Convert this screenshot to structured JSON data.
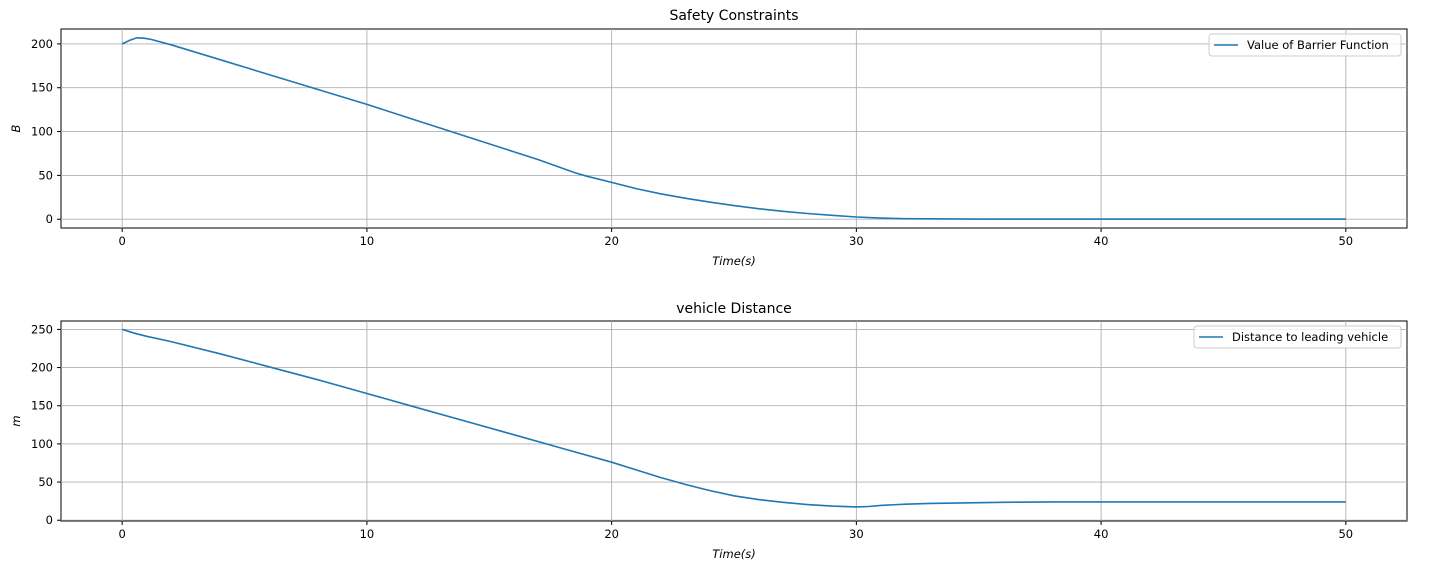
{
  "chart_data": [
    {
      "type": "line",
      "title": "Safety Constraints",
      "xlabel": "Time(s)",
      "ylabel": "B",
      "xlim": [
        -2.5,
        52.5
      ],
      "ylim": [
        -10,
        217
      ],
      "xticks": [
        0,
        10,
        20,
        30,
        40,
        50
      ],
      "yticks": [
        0,
        50,
        100,
        150,
        200
      ],
      "grid": true,
      "legend_position": "top-right",
      "series": [
        {
          "name": "Value of Barrier Function",
          "color": "#1f77b4",
          "x": [
            0,
            0.3,
            0.6,
            0.9,
            1.2,
            2,
            4,
            6,
            8,
            10,
            12,
            14,
            16,
            17,
            18,
            18.5,
            19,
            20,
            21,
            22,
            23,
            24,
            25,
            26,
            27,
            28,
            29,
            30,
            31,
            32,
            35,
            40,
            45,
            50
          ],
          "values": [
            200,
            204,
            207,
            206.5,
            205,
            199,
            182,
            165,
            148,
            131,
            113,
            95,
            77,
            68,
            58,
            53,
            49,
            42,
            35,
            29,
            24,
            19.5,
            15.5,
            12,
            9,
            6.5,
            4.5,
            2.5,
            1.3,
            0.6,
            0.2,
            0.1,
            0.1,
            0.1
          ]
        }
      ]
    },
    {
      "type": "line",
      "title": "vehicle Distance",
      "xlabel": "Time(s)",
      "ylabel": "m",
      "xlim": [
        -2.5,
        52.5
      ],
      "ylim": [
        -1,
        261
      ],
      "xticks": [
        0,
        10,
        20,
        30,
        40,
        50
      ],
      "yticks": [
        0,
        50,
        100,
        150,
        200,
        250
      ],
      "grid": true,
      "legend_position": "top-right",
      "series": [
        {
          "name": "Distance to leading vehicle",
          "color": "#1f77b4",
          "x": [
            0,
            0.5,
            1,
            2,
            4,
            6,
            8,
            10,
            12,
            14,
            16,
            18,
            20,
            21,
            22,
            23,
            24,
            25,
            26,
            27,
            28,
            29,
            30,
            30.5,
            31,
            32,
            33,
            34,
            35,
            36,
            38,
            40,
            45,
            50
          ],
          "values": [
            250,
            245,
            241,
            234,
            218,
            201,
            184,
            166,
            148,
            130,
            112,
            94,
            76,
            66,
            56,
            47,
            39,
            32,
            27,
            23.5,
            20.5,
            18.5,
            17.5,
            18,
            19.5,
            21,
            22,
            22.5,
            23,
            23.5,
            24,
            24,
            24,
            24
          ]
        }
      ]
    }
  ]
}
